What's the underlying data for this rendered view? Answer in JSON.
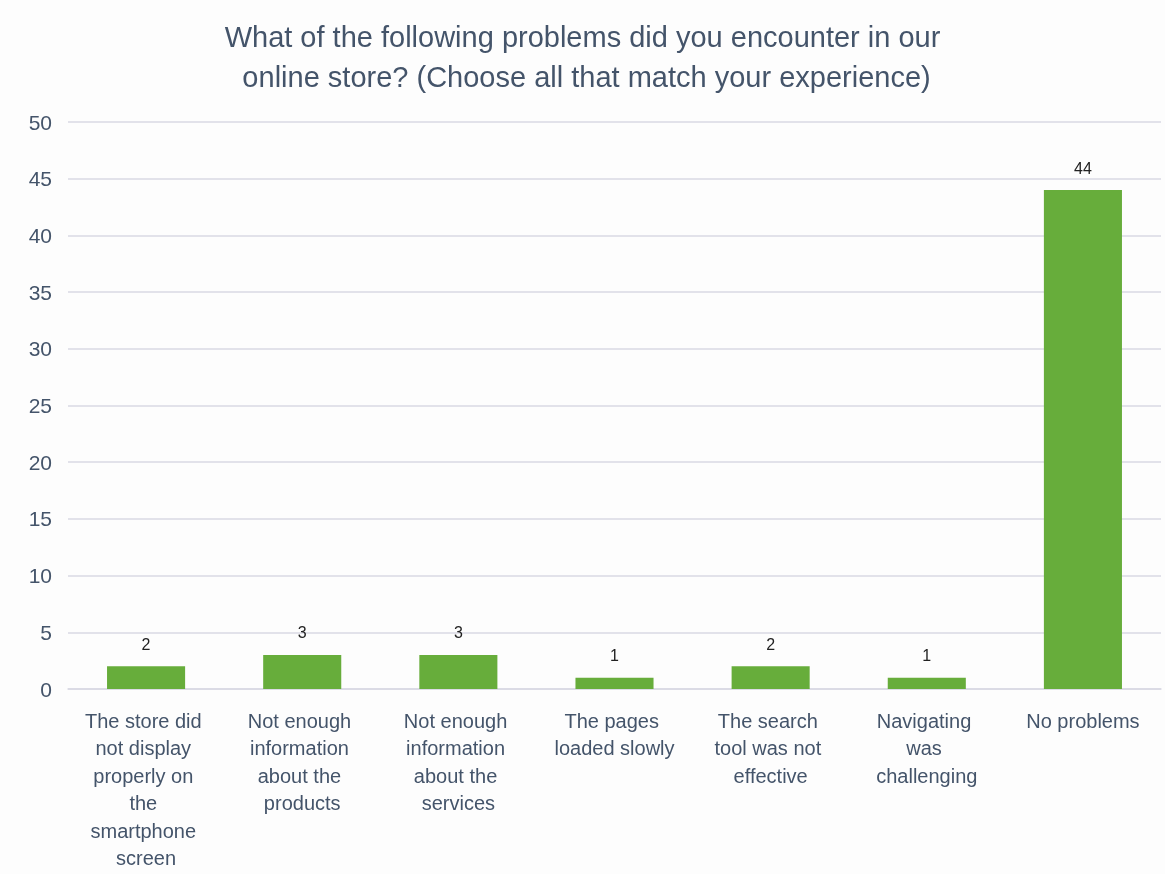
{
  "chart_data": {
    "type": "bar",
    "title": "What of the following problems did you encounter in our online store? (Choose all that match your experience)",
    "categories": [
      "The store did not display properly on the smartphone screen",
      "Not enough information about the products",
      "Not enough information about the services",
      "The pages loaded slowly",
      "The search tool was not effective",
      "Navigating was challenging",
      "No problems"
    ],
    "values": [
      2,
      3,
      3,
      1,
      2,
      1,
      44
    ],
    "color": "#67ad3b",
    "ylim": [
      0,
      50
    ],
    "yticks": [
      0,
      5,
      10,
      15,
      20,
      25,
      30,
      35,
      40,
      45,
      50
    ],
    "grid": "y",
    "data_labels": true
  }
}
